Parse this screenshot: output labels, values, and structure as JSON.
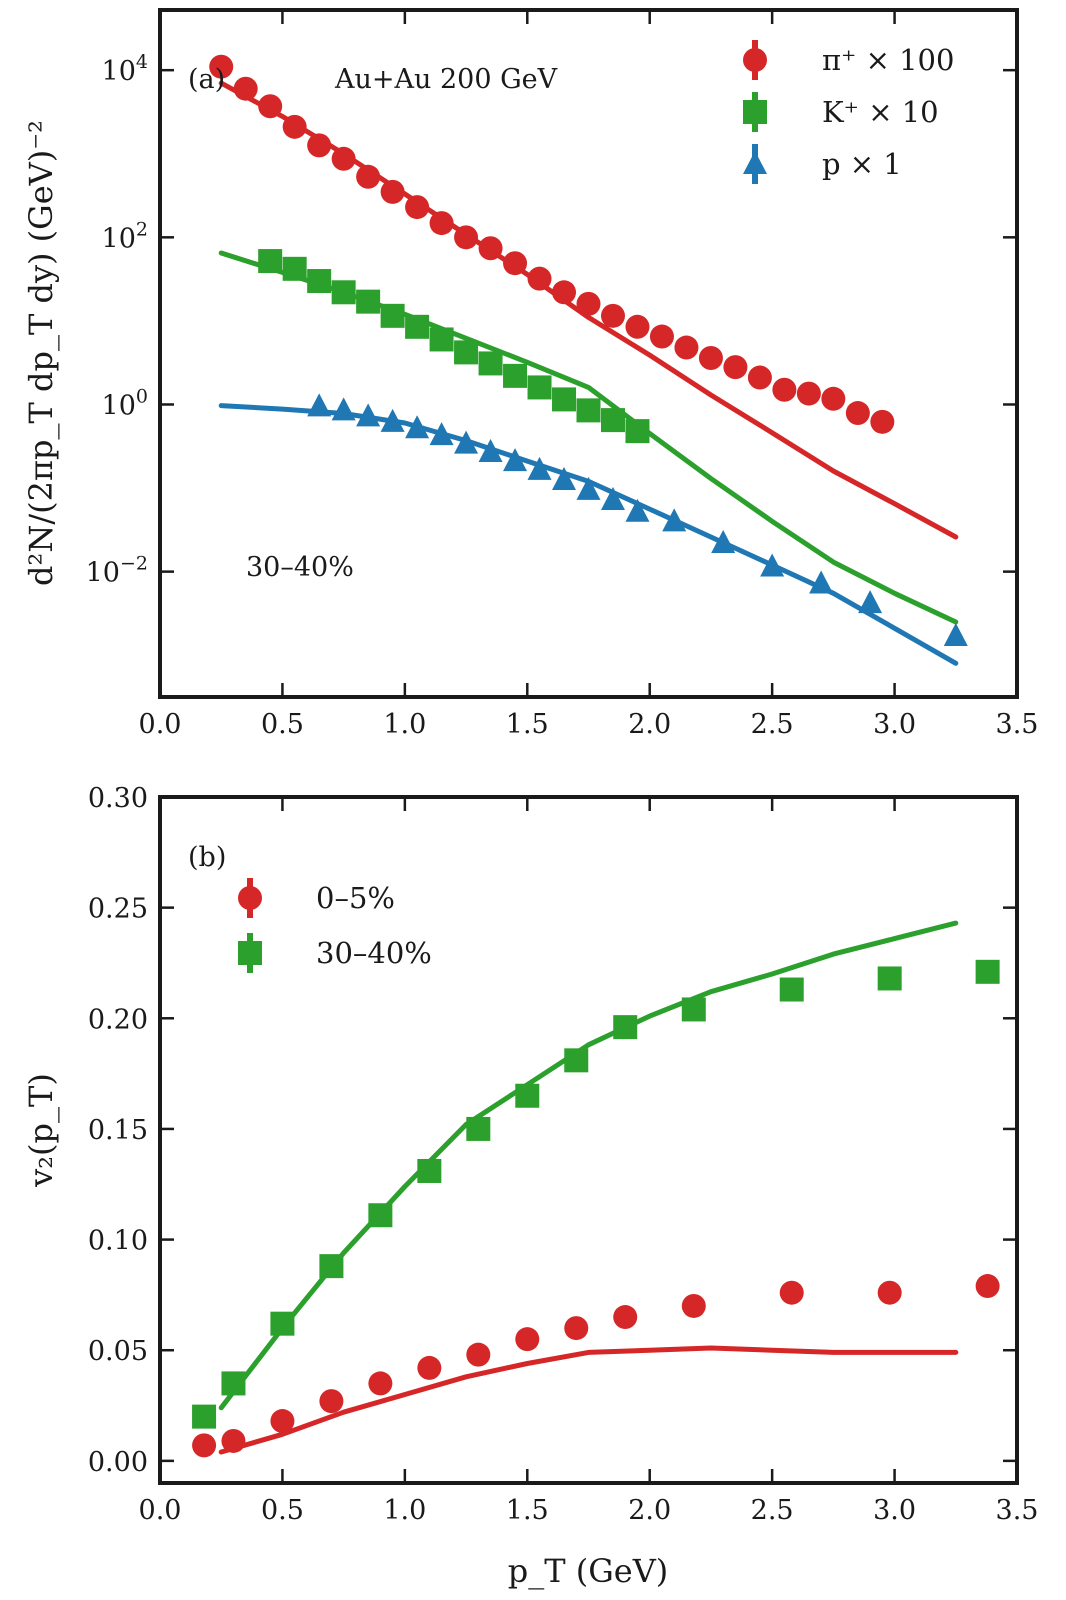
{
  "chart_data": [
    {
      "type": "scatter",
      "panel": "a",
      "panel_label": "(a)",
      "title": "Au+Au 200 GeV",
      "annotation": "30–40%",
      "xlabel": "",
      "ylabel": "d²N/(2πp_T dp_T dy) (GeV)⁻²",
      "yscale": "log",
      "xlim": [
        0.0,
        3.5
      ],
      "ylim_log10": [
        -3.5,
        4.72
      ],
      "xticks": [
        "0.0",
        "0.5",
        "1.0",
        "1.5",
        "2.0",
        "2.5",
        "3.0",
        "3.5"
      ],
      "xtick_values": [
        0.0,
        0.5,
        1.0,
        1.5,
        2.0,
        2.5,
        3.0,
        3.5
      ],
      "yticks": [
        {
          "label_base": "10",
          "label_exp": "4",
          "value_log10": 4
        },
        {
          "label_base": "10",
          "label_exp": "2",
          "value_log10": 2
        },
        {
          "label_base": "10",
          "label_exp": "0",
          "value_log10": 0
        },
        {
          "label_base": "10",
          "label_exp": "−2",
          "value_log10": -2
        }
      ],
      "legend_position": "top-right",
      "series": [
        {
          "name": "π⁺ × 100",
          "color": "#d62728",
          "marker": "circle",
          "x": [
            0.25,
            0.35,
            0.45,
            0.55,
            0.65,
            0.75,
            0.85,
            0.95,
            1.05,
            1.15,
            1.25,
            1.35,
            1.45,
            1.55,
            1.65,
            1.75,
            1.85,
            1.95,
            2.05,
            2.15,
            2.25,
            2.35,
            2.45,
            2.55,
            2.65,
            2.75,
            2.85,
            2.95
          ],
          "y": [
            11000,
            6000,
            3700,
            2100,
            1260,
            870,
            530,
            350,
            230,
            148,
            100,
            74,
            49,
            32,
            22,
            16,
            11.5,
            8.5,
            6.5,
            4.8,
            3.6,
            2.8,
            2.1,
            1.5,
            1.35,
            1.17,
            0.79,
            0.62
          ]
        },
        {
          "name": "K⁺ × 10",
          "color": "#2ca02c",
          "marker": "square",
          "x": [
            0.45,
            0.55,
            0.65,
            0.75,
            0.85,
            0.95,
            1.05,
            1.15,
            1.25,
            1.35,
            1.45,
            1.55,
            1.65,
            1.75,
            1.85,
            1.95
          ],
          "y": [
            52,
            42,
            30,
            22,
            17,
            11.5,
            8.5,
            6,
            4.2,
            3.1,
            2.2,
            1.6,
            1.15,
            0.85,
            0.65,
            0.48
          ]
        },
        {
          "name": "p × 1",
          "color": "#1f77b4",
          "marker": "triangle",
          "x": [
            0.65,
            0.75,
            0.85,
            0.95,
            1.05,
            1.15,
            1.25,
            1.35,
            1.45,
            1.55,
            1.65,
            1.75,
            1.85,
            1.95,
            2.1,
            2.3,
            2.5,
            2.7,
            2.9,
            3.25
          ],
          "y": [
            0.95,
            0.85,
            0.72,
            0.62,
            0.52,
            0.43,
            0.34,
            0.27,
            0.21,
            0.165,
            0.125,
            0.095,
            0.072,
            0.052,
            0.04,
            0.022,
            0.0115,
            0.0072,
            0.0042,
            0.0017
          ]
        }
      ],
      "model_lines": [
        {
          "name": "π⁺ model",
          "color": "#d62728",
          "x": [
            0.25,
            0.5,
            0.75,
            1.0,
            1.25,
            1.5,
            1.75,
            2.0,
            2.25,
            2.5,
            2.75,
            3.0,
            3.25
          ],
          "y": [
            7000,
            2800,
            1000,
            330,
            108,
            36,
            11,
            3.9,
            1.3,
            0.46,
            0.16,
            0.065,
            0.026
          ]
        },
        {
          "name": "K⁺ model",
          "color": "#2ca02c",
          "x": [
            0.25,
            0.5,
            0.75,
            1.0,
            1.25,
            1.5,
            1.75,
            2.0,
            2.25,
            2.5,
            2.75,
            3.0,
            3.25
          ],
          "y": [
            65,
            38,
            22,
            12,
            6.2,
            3.2,
            1.6,
            0.45,
            0.13,
            0.04,
            0.013,
            0.0055,
            0.0025
          ]
        },
        {
          "name": "p model",
          "color": "#1f77b4",
          "x": [
            0.25,
            0.5,
            0.75,
            1.0,
            1.25,
            1.5,
            1.75,
            2.0,
            2.25,
            2.5,
            2.75,
            3.0,
            3.25
          ],
          "y": [
            0.97,
            0.88,
            0.78,
            0.6,
            0.37,
            0.21,
            0.12,
            0.056,
            0.026,
            0.012,
            0.0055,
            0.0021,
            0.0008
          ]
        }
      ]
    },
    {
      "type": "scatter",
      "panel": "b",
      "panel_label": "(b)",
      "xlabel": "p_T (GeV)",
      "ylabel": "v₂(p_T)",
      "xlim": [
        0.0,
        3.5
      ],
      "ylim": [
        -0.01,
        0.3
      ],
      "xticks": [
        "0.0",
        "0.5",
        "1.0",
        "1.5",
        "2.0",
        "2.5",
        "3.0",
        "3.5"
      ],
      "xtick_values": [
        0.0,
        0.5,
        1.0,
        1.5,
        2.0,
        2.5,
        3.0,
        3.5
      ],
      "yticks": [
        "0.00",
        "0.05",
        "0.10",
        "0.15",
        "0.20",
        "0.25",
        "0.30"
      ],
      "ytick_values": [
        0.0,
        0.05,
        0.1,
        0.15,
        0.2,
        0.25,
        0.3
      ],
      "legend_position": "top-left",
      "series": [
        {
          "name": "0–5%",
          "color": "#d62728",
          "marker": "circle",
          "x": [
            0.18,
            0.3,
            0.5,
            0.7,
            0.9,
            1.1,
            1.3,
            1.5,
            1.7,
            1.9,
            2.18,
            2.58,
            2.98,
            3.38
          ],
          "y": [
            0.007,
            0.009,
            0.018,
            0.027,
            0.035,
            0.042,
            0.048,
            0.055,
            0.06,
            0.065,
            0.07,
            0.076,
            0.076,
            0.079
          ]
        },
        {
          "name": "30–40%",
          "color": "#2ca02c",
          "marker": "square",
          "x": [
            0.18,
            0.3,
            0.5,
            0.7,
            0.9,
            1.1,
            1.3,
            1.5,
            1.7,
            1.9,
            2.18,
            2.58,
            2.98,
            3.38
          ],
          "y": [
            0.02,
            0.035,
            0.062,
            0.088,
            0.111,
            0.131,
            0.15,
            0.165,
            0.181,
            0.196,
            0.204,
            0.213,
            0.218,
            0.221
          ]
        }
      ],
      "model_lines": [
        {
          "name": "0–5% model",
          "color": "#d62728",
          "x": [
            0.25,
            0.5,
            0.75,
            1.0,
            1.25,
            1.5,
            1.75,
            2.0,
            2.25,
            2.5,
            2.75,
            3.0,
            3.25
          ],
          "y": [
            0.004,
            0.012,
            0.022,
            0.03,
            0.038,
            0.044,
            0.049,
            0.05,
            0.051,
            0.05,
            0.049,
            0.049,
            0.049
          ]
        },
        {
          "name": "30–40% model",
          "color": "#2ca02c",
          "x": [
            0.25,
            0.5,
            0.75,
            1.0,
            1.25,
            1.5,
            1.75,
            2.0,
            2.25,
            2.5,
            2.75,
            3.0,
            3.25
          ],
          "y": [
            0.024,
            0.06,
            0.094,
            0.124,
            0.152,
            0.17,
            0.188,
            0.201,
            0.212,
            0.22,
            0.229,
            0.236,
            0.243
          ]
        }
      ]
    }
  ]
}
